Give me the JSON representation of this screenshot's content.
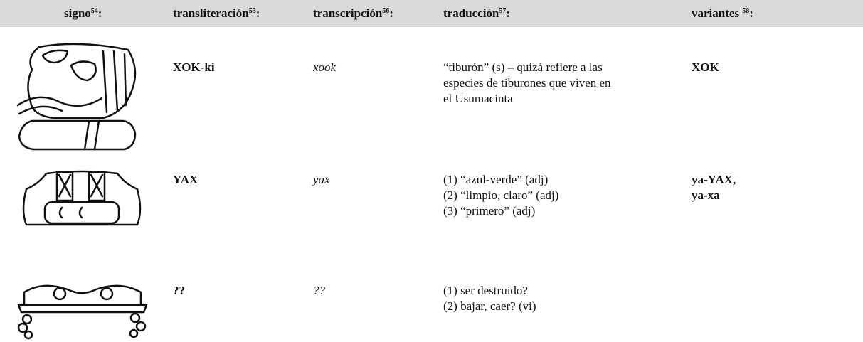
{
  "header": [
    {
      "label": "signo",
      "note": "54",
      "suffix": ":"
    },
    {
      "label": "transliteración",
      "note": "55",
      "suffix": ":"
    },
    {
      "label": "transcripción",
      "note": "56",
      "suffix": ":"
    },
    {
      "label": "traducción",
      "note": "57",
      "suffix": ":"
    },
    {
      "label": "variantes ",
      "note": "58",
      "suffix": ":"
    }
  ],
  "rows": [
    {
      "transliteration": "XOK-ki",
      "transcription": "xook",
      "translation": [
        "“tiburón” (s) – quizá refiere a las",
        "especies de tiburones que viven en",
        "el Usumacinta"
      ],
      "variants": [
        "XOK"
      ]
    },
    {
      "transliteration": "YAX",
      "transcription": "yax",
      "translation": [
        "(1) “azul-verde” (adj)",
        "(2) “limpio, claro” (adj)",
        "(3) “primero” (adj)"
      ],
      "variants": [
        "ya-YAX,",
        "ya-xa"
      ]
    },
    {
      "transliteration": "??",
      "transcription": "??",
      "translation": [
        "(1) ser destruido?",
        "(2) bajar, caer? (vi)"
      ],
      "variants": []
    }
  ]
}
